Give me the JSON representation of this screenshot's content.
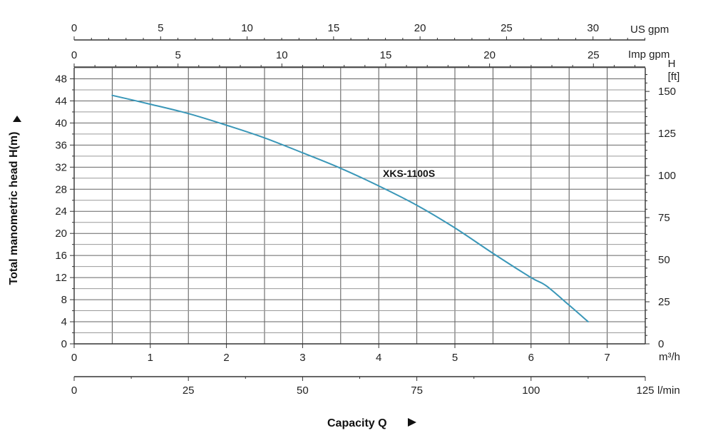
{
  "chart_data": {
    "type": "line",
    "title": "",
    "xlabel": "Capacity Q",
    "ylabel": "Total manometric head H(m)",
    "y2label_line1": "H",
    "y2label_line2": "[ft]",
    "x_units": {
      "m3h": "m³/h",
      "lmin": "l/min",
      "us_gpm": "US gpm",
      "imp_gpm": "Imp gpm"
    },
    "xlim": [
      0,
      7.5
    ],
    "ylim": [
      0,
      50
    ],
    "grid": true,
    "x_ticks_m3h": [
      "0",
      "1",
      "2",
      "3",
      "4",
      "5",
      "6",
      "7"
    ],
    "x_ticks_lmin": [
      "0",
      "25",
      "50",
      "75",
      "100",
      "125"
    ],
    "x_ticks_us_gpm": [
      "0",
      "5",
      "10",
      "15",
      "20",
      "25",
      "30"
    ],
    "x_ticks_imp_gpm": [
      "0",
      "5",
      "10",
      "15",
      "20",
      "25"
    ],
    "y_ticks_m": [
      "0",
      "4",
      "8",
      "12",
      "16",
      "20",
      "24",
      "28",
      "32",
      "36",
      "40",
      "44",
      "48"
    ],
    "y_ticks_ft": [
      "0",
      "25",
      "50",
      "75",
      "100",
      "125",
      "150"
    ],
    "series": [
      {
        "name": "XKS-1100S",
        "color": "#3a97b8",
        "x": [
          0.5,
          1.0,
          1.5,
          2.0,
          2.5,
          3.0,
          3.5,
          4.0,
          4.5,
          5.0,
          5.5,
          6.0,
          6.2,
          6.5,
          6.75
        ],
        "y": [
          45.0,
          43.4,
          41.7,
          39.6,
          37.3,
          34.6,
          31.8,
          28.6,
          25.1,
          21.0,
          16.4,
          12.0,
          10.5,
          7.0,
          4.0
        ]
      }
    ]
  }
}
